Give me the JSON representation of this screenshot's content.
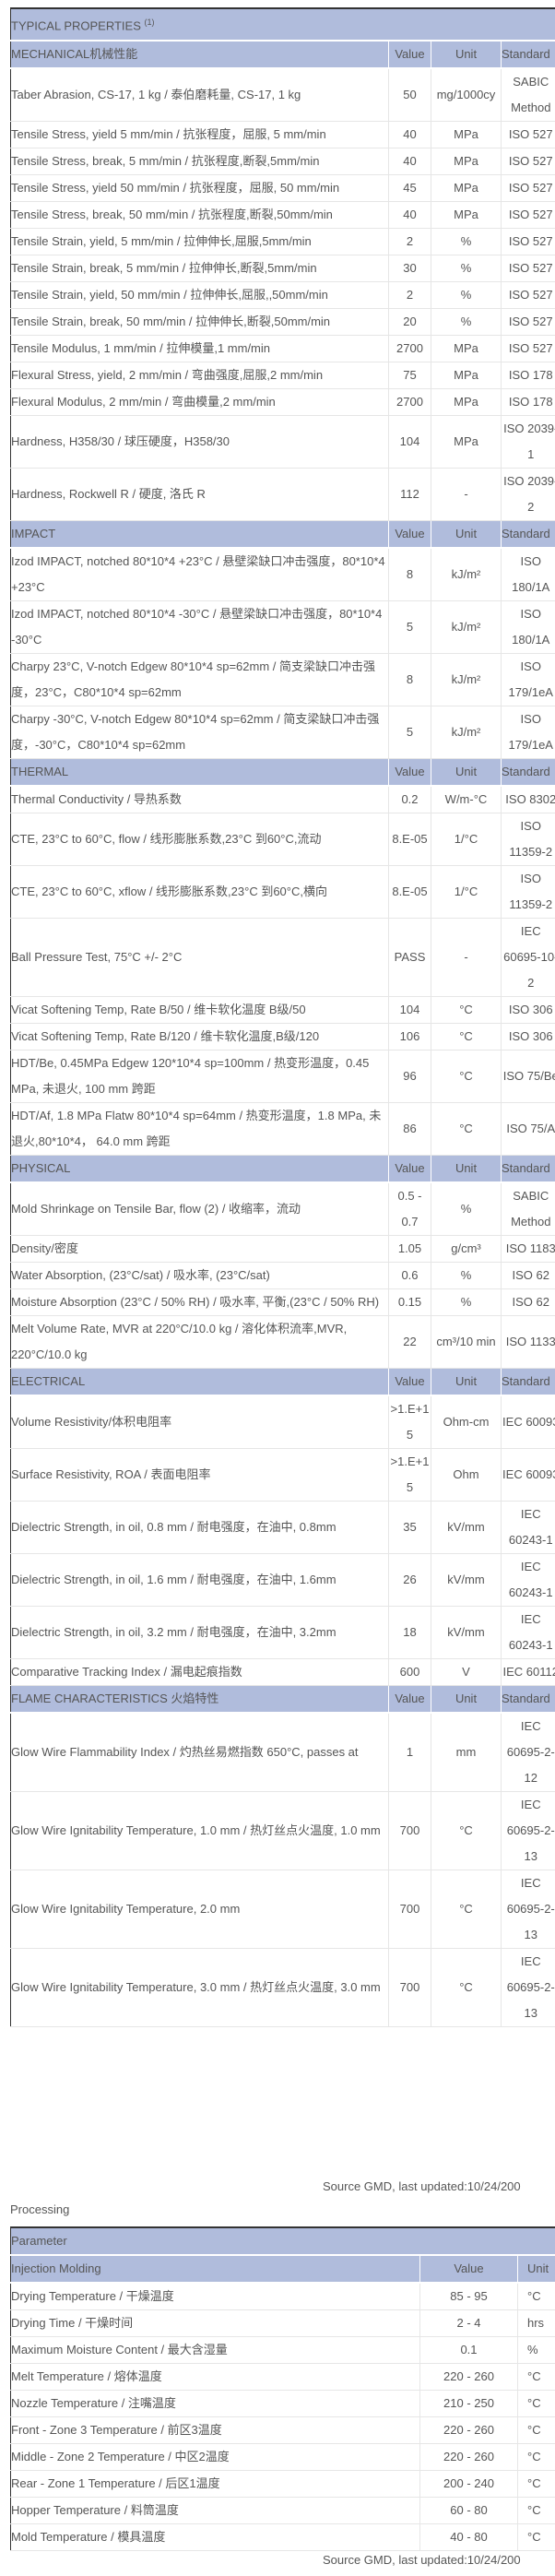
{
  "colors": {
    "header_bg": "#b0bcdc",
    "text": "#555555",
    "border": "#333333"
  },
  "properties": {
    "title": "TYPICAL PROPERTIES",
    "title_note": "(1)",
    "col_value": "Value",
    "col_unit": "Unit",
    "col_standard": "Standard",
    "sections": [
      {
        "name": "MECHANICAL机械性能",
        "rows": [
          {
            "label": "Taber Abrasion, CS-17, 1 kg / 泰伯磨耗量, CS-17, 1 kg",
            "value": "50",
            "unit": "mg/1000cy",
            "standard": "SABIC Method"
          },
          {
            "label": "Tensile Stress, yield 5 mm/min / 抗张程度，屈服, 5 mm/min",
            "value": "40",
            "unit": "MPa",
            "standard": "ISO 527"
          },
          {
            "label": "Tensile Stress, break, 5 mm/min / 抗张程度,断裂,5mm/min",
            "value": "40",
            "unit": "MPa",
            "standard": "ISO 527"
          },
          {
            "label": "Tensile Stress, yield 50 mm/min / 抗张程度，屈服, 50 mm/min",
            "value": "45",
            "unit": "MPa",
            "standard": "ISO 527"
          },
          {
            "label": "Tensile Stress, break, 50 mm/min / 抗张程度,断裂,50mm/min",
            "value": "40",
            "unit": "MPa",
            "standard": "ISO 527"
          },
          {
            "label": "Tensile Strain, yield, 5 mm/min / 拉伸伸长,屈服,5mm/min",
            "value": "2",
            "unit": "%",
            "standard": "ISO 527"
          },
          {
            "label": "Tensile Strain, break, 5 mm/min / 拉伸伸长,断裂,5mm/min",
            "value": "30",
            "unit": "%",
            "standard": "ISO 527"
          },
          {
            "label": "Tensile Strain, yield, 50 mm/min / 拉伸伸长,屈服,,50mm/min",
            "value": "2",
            "unit": "%",
            "standard": "ISO 527"
          },
          {
            "label": "Tensile Strain, break, 50 mm/min / 拉伸伸长,断裂,50mm/min",
            "value": "20",
            "unit": "%",
            "standard": "ISO 527"
          },
          {
            "label": "Tensile Modulus, 1 mm/min / 拉伸模量,1 mm/min",
            "value": "2700",
            "unit": "MPa",
            "standard": "ISO 527"
          },
          {
            "label": "Flexural Stress, yield, 2 mm/min / 弯曲强度,屈服,2 mm/min",
            "value": "75",
            "unit": "MPa",
            "standard": "ISO 178"
          },
          {
            "label": "Flexural Modulus, 2 mm/min / 弯曲模量,2 mm/min",
            "value": "2700",
            "unit": "MPa",
            "standard": "ISO 178"
          },
          {
            "label": "Hardness, H358/30 / 球压硬度，H358/30",
            "value": "104",
            "unit": "MPa",
            "standard": "ISO 2039-1"
          },
          {
            "label": "Hardness, Rockwell R / 硬度, 洛氏 R",
            "value": "112",
            "unit": "-",
            "standard": "ISO 2039-2"
          }
        ]
      },
      {
        "name": "IMPACT",
        "rows": [
          {
            "label": "Izod IMPACT, notched 80*10*4 +23°C / 悬壁梁缺口冲击强度，80*10*4 +23°C",
            "value": "8",
            "unit": "kJ/m²",
            "standard": "ISO 180/1A"
          },
          {
            "label": "Izod IMPACT, notched 80*10*4 -30°C / 悬壁梁缺口冲击强度，80*10*4 -30°C",
            "value": "5",
            "unit": "kJ/m²",
            "standard": "ISO 180/1A"
          },
          {
            "label": "Charpy 23°C, V-notch Edgew 80*10*4 sp=62mm / 简支梁缺口冲击强度，23°C，C80*10*4 sp=62mm",
            "value": "8",
            "unit": "kJ/m²",
            "standard": "ISO 179/1eA"
          },
          {
            "label": "Charpy -30°C, V-notch Edgew 80*10*4 sp=62mm / 简支梁缺口冲击强度，-30°C，C80*10*4 sp=62mm",
            "value": "5",
            "unit": "kJ/m²",
            "standard": "ISO 179/1eA"
          }
        ]
      },
      {
        "name": "THERMAL",
        "rows": [
          {
            "label": "Thermal Conductivity / 导热系数",
            "value": "0.2",
            "unit": "W/m-°C",
            "standard": "ISO 8302"
          },
          {
            "label": "CTE, 23°C to 60°C, flow / 线形膨胀系数,23°C 到60°C,流动",
            "value": "8.E-05",
            "unit": "1/°C",
            "standard": "ISO 11359-2"
          },
          {
            "label": "CTE, 23°C to 60°C, xflow / 线形膨胀系数,23°C 到60°C,横向",
            "value": "8.E-05",
            "unit": "1/°C",
            "standard": "ISO 11359-2"
          },
          {
            "label": "Ball Pressure Test, 75°C +/- 2°C",
            "value": "PASS",
            "unit": "-",
            "standard": "IEC 60695-10-2"
          },
          {
            "label": "Vicat Softening Temp, Rate B/50 / 维卡软化温度 B级/50",
            "value": "104",
            "unit": "°C",
            "standard": "ISO 306"
          },
          {
            "label": "Vicat Softening Temp, Rate B/120 / 维卡软化温度,B级/120",
            "value": "106",
            "unit": "°C",
            "standard": "ISO 306"
          },
          {
            "label": "HDT/Be, 0.45MPa Edgew 120*10*4 sp=100mm / 热变形温度，0.45 MPa, 未退火, 100 mm 跨距",
            "value": "96",
            "unit": "°C",
            "standard": "ISO 75/Be"
          },
          {
            "label": "HDT/Af, 1.8 MPa Flatw 80*10*4 sp=64mm / 热变形温度，1.8 MPa, 未退火,80*10*4， 64.0 mm 跨距",
            "value": "86",
            "unit": "°C",
            "standard": "ISO 75/A"
          }
        ]
      },
      {
        "name": "PHYSICAL",
        "rows": [
          {
            "label": "Mold Shrinkage on Tensile Bar, flow (2) / 收缩率，流动",
            "value": "0.5 - 0.7",
            "unit": "%",
            "standard": "SABIC Method"
          },
          {
            "label": "Density/密度",
            "value": "1.05",
            "unit": "g/cm³",
            "standard": "ISO 1183"
          },
          {
            "label": "Water Absorption, (23°C/sat) / 吸水率, (23°C/sat)",
            "value": "0.6",
            "unit": "%",
            "standard": "ISO 62"
          },
          {
            "label": "Moisture Absorption (23°C / 50% RH) / 吸水率, 平衡,(23°C / 50% RH)",
            "value": "0.15",
            "unit": "%",
            "standard": "ISO 62"
          },
          {
            "label": "Melt Volume Rate, MVR at 220°C/10.0 kg / 溶化体积流率,MVR, 220°C/10.0 kg",
            "value": "22",
            "unit": "cm³/10 min",
            "standard": "ISO 1133"
          }
        ]
      },
      {
        "name": "ELECTRICAL",
        "rows": [
          {
            "label": "Volume Resistivity/体积电阻率",
            "value": ">1.E+15",
            "unit": "Ohm-cm",
            "standard": "IEC 60093"
          },
          {
            "label": "Surface Resistivity, ROA / 表面电阻率",
            "value": ">1.E+15",
            "unit": "Ohm",
            "standard": "IEC 60093"
          },
          {
            "label": "Dielectric Strength, in oil, 0.8 mm / 耐电强度，在油中, 0.8mm",
            "value": "35",
            "unit": "kV/mm",
            "standard": "IEC 60243-1"
          },
          {
            "label": "Dielectric Strength, in oil, 1.6 mm / 耐电强度，在油中, 1.6mm",
            "value": "26",
            "unit": "kV/mm",
            "standard": "IEC 60243-1"
          },
          {
            "label": "Dielectric Strength, in oil, 3.2 mm / 耐电强度，在油中, 3.2mm",
            "value": "18",
            "unit": "kV/mm",
            "standard": "IEC 60243-1"
          },
          {
            "label": "Comparative Tracking Index / 漏电起痕指数",
            "value": "600",
            "unit": "V",
            "standard": "IEC 60112"
          }
        ]
      },
      {
        "name": "FLAME CHARACTERISTICS 火焰特性",
        "rows": [
          {
            "label": "Glow Wire Flammability Index / 灼热丝易燃指数 650°C, passes at",
            "value": "1",
            "unit": "mm",
            "standard": "IEC 60695-2-12"
          },
          {
            "label": "Glow Wire Ignitability Temperature, 1.0 mm / 热灯丝点火温度, 1.0 mm",
            "value": "700",
            "unit": "°C",
            "standard": "IEC 60695-2-13"
          },
          {
            "label": "Glow Wire Ignitability Temperature, 2.0 mm",
            "value": "700",
            "unit": "°C",
            "standard": "IEC 60695-2-13"
          },
          {
            "label": "Glow Wire Ignitability Temperature, 3.0 mm / 热灯丝点火温度, 3.0 mm",
            "value": "700",
            "unit": "°C",
            "standard": "IEC 60695-2-13"
          }
        ]
      }
    ],
    "source": "Source GMD, last updated:10/24/200"
  },
  "processing": {
    "label": "Processing",
    "title": "Parameter",
    "section": "Injection Molding",
    "col_value": "Value",
    "col_unit": "Unit",
    "rows": [
      {
        "label": "Drying Temperature / 干燥温度",
        "value": "85 - 95",
        "unit": "°C"
      },
      {
        "label": "Drying Time / 干燥时间",
        "value": "2 - 4",
        "unit": "hrs"
      },
      {
        "label": "Maximum Moisture Content / 最大含湿量",
        "value": "0.1",
        "unit": "%"
      },
      {
        "label": "Melt Temperature / 熔体温度",
        "value": "220 - 260",
        "unit": "°C"
      },
      {
        "label": "Nozzle Temperature / 注嘴温度",
        "value": "210 - 250",
        "unit": "°C"
      },
      {
        "label": "Front - Zone 3 Temperature / 前区3温度",
        "value": "220 - 260",
        "unit": "°C"
      },
      {
        "label": "Middle - Zone 2 Temperature / 中区2温度",
        "value": "220 - 260",
        "unit": "°C"
      },
      {
        "label": "Rear - Zone 1 Temperature / 后区1温度",
        "value": "200 - 240",
        "unit": "°C"
      },
      {
        "label": "Hopper Temperature / 料筒温度",
        "value": "60 - 80",
        "unit": "°C"
      },
      {
        "label": "Mold Temperature / 模具温度",
        "value": "40 - 80",
        "unit": "°C"
      }
    ],
    "source": "Source GMD, last updated:10/24/200"
  }
}
